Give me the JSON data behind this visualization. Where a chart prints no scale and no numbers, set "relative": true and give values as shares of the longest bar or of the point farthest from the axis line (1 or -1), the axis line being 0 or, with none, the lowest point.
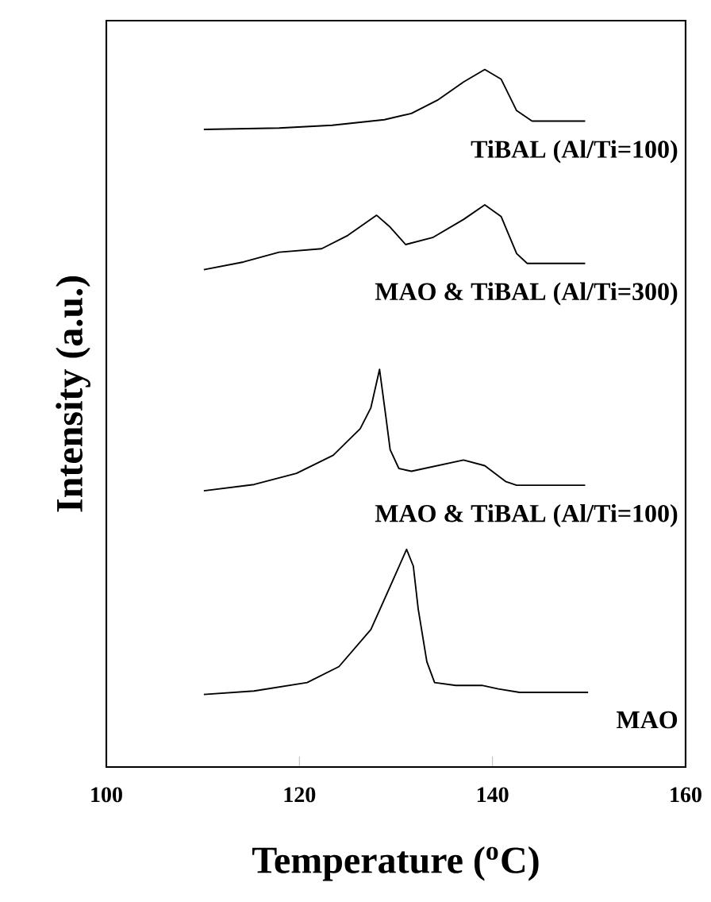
{
  "chart_data": {
    "type": "line",
    "relative": true,
    "xlabel": "Temperature ($^{o}$C)",
    "ylabel": "Intensity (a.u.)",
    "xlim": [
      100,
      160
    ],
    "xticks": [
      100,
      120,
      140,
      160
    ],
    "grid": false,
    "legend": false,
    "marker": "none",
    "line_style": "solid",
    "series": [
      {
        "name": "TiBAL (Al/Ti=100)",
        "color": "#000000",
        "x": [
          110.1,
          117.9,
          123.4,
          128.8,
          131.6,
          134.3,
          137.0,
          139.2,
          140.9,
          142.5,
          144.1,
          149.6
        ],
        "values": [
          0.914,
          0.916,
          0.92,
          0.928,
          0.937,
          0.956,
          0.982,
          1.0,
          0.986,
          0.941,
          0.926,
          0.926
        ]
      },
      {
        "name": "MAO & TiBAL (Al/Ti=300)",
        "color": "#000000",
        "x": [
          110.1,
          114.2,
          117.9,
          122.3,
          125.0,
          128.0,
          129.4,
          131.0,
          133.8,
          137.0,
          139.2,
          140.9,
          142.5,
          143.6,
          149.6
        ],
        "values": [
          0.713,
          0.724,
          0.738,
          0.743,
          0.762,
          0.791,
          0.774,
          0.749,
          0.759,
          0.785,
          0.806,
          0.789,
          0.736,
          0.722,
          0.722
        ]
      },
      {
        "name": "MAO & TiBAL (Al/Ti=100)",
        "color": "#000000",
        "x": [
          110.1,
          115.3,
          119.7,
          123.5,
          126.3,
          127.4,
          128.3,
          128.9,
          129.4,
          130.3,
          131.6,
          134.3,
          137.0,
          139.2,
          141.4,
          142.5,
          149.6
        ],
        "values": [
          0.396,
          0.405,
          0.421,
          0.447,
          0.485,
          0.515,
          0.57,
          0.508,
          0.455,
          0.428,
          0.424,
          0.432,
          0.44,
          0.432,
          0.409,
          0.404,
          0.404
        ]
      },
      {
        "name": "MAO",
        "color": "#000000",
        "x": [
          110.1,
          115.3,
          120.8,
          124.1,
          127.4,
          129.6,
          131.1,
          131.8,
          132.3,
          133.2,
          134.0,
          136.2,
          138.9,
          140.6,
          142.8,
          149.9
        ],
        "values": [
          0.104,
          0.109,
          0.121,
          0.144,
          0.197,
          0.265,
          0.312,
          0.288,
          0.227,
          0.151,
          0.121,
          0.117,
          0.117,
          0.112,
          0.107,
          0.107
        ]
      }
    ]
  }
}
